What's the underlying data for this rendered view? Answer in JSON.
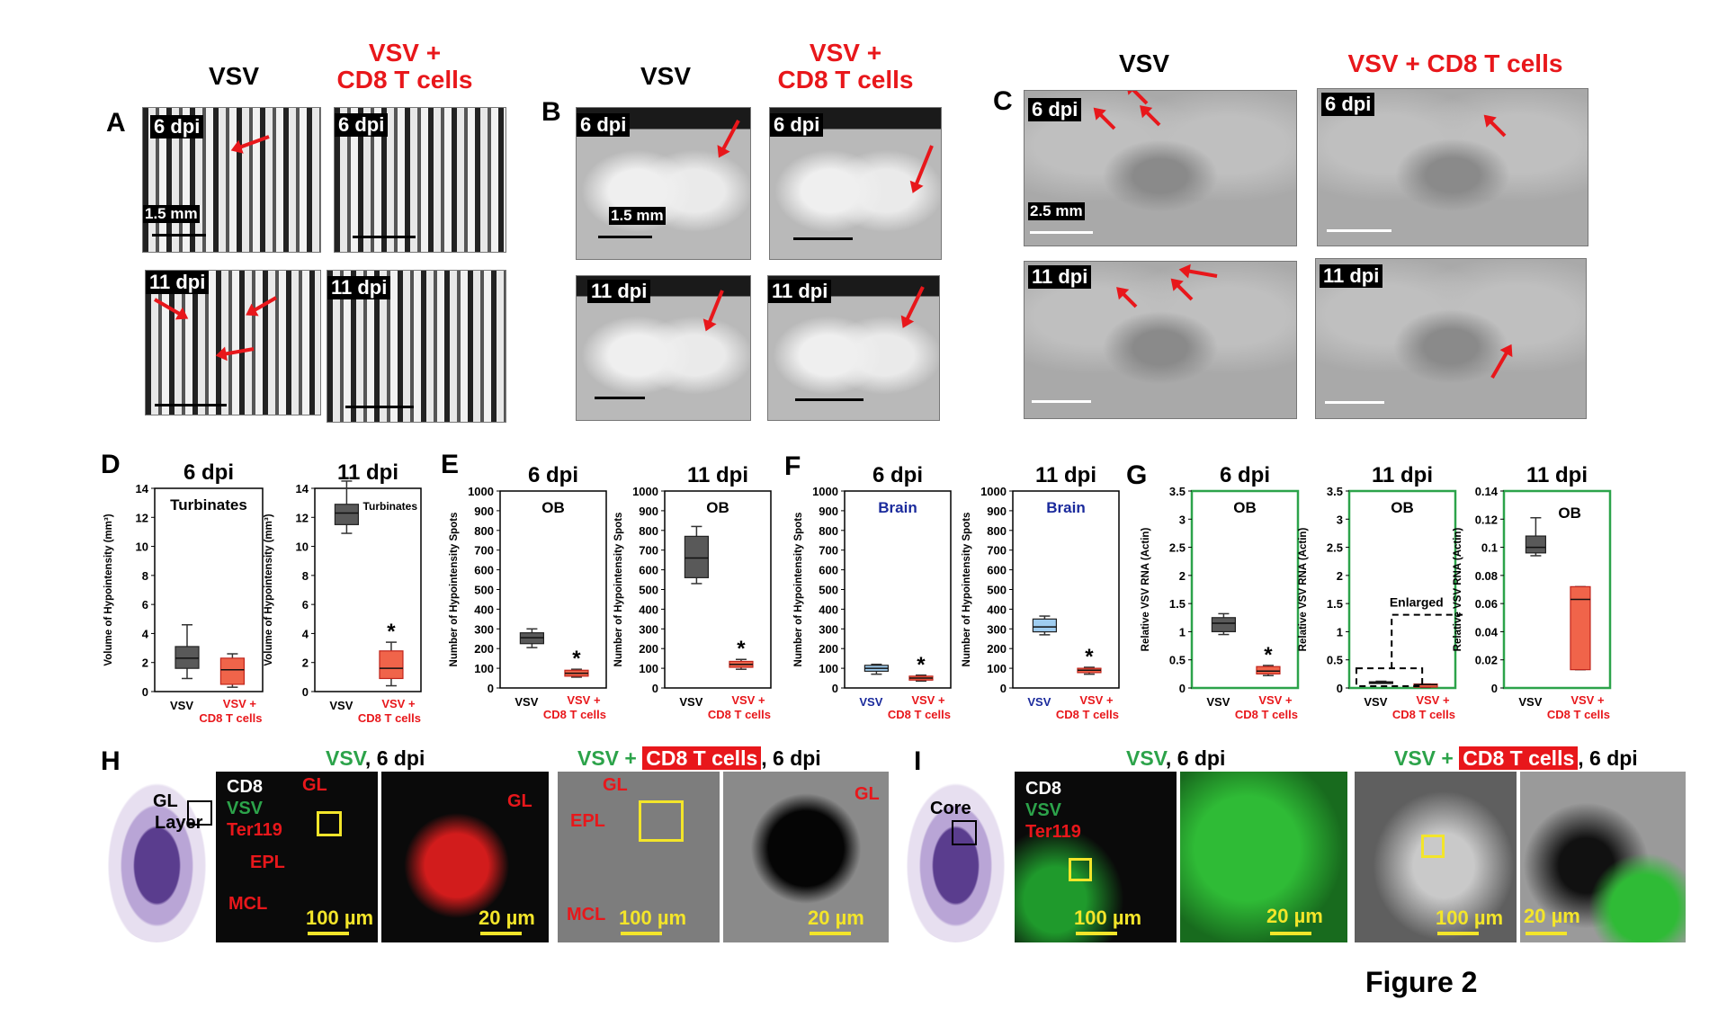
{
  "figure_label": "Figure 2",
  "colors": {
    "vsv_box": "#595959",
    "cd8_box": "#f0644a",
    "accent_red": "#e8171b",
    "green_border": "#2ca34a",
    "brain_blue": "#1a2a9c",
    "vsv_blue_box": "#9fcdf0",
    "yellow": "#f3e52a"
  },
  "panel_A": {
    "letter": "A",
    "col_vsv": "VSV",
    "col_cd8_line1": "VSV +",
    "col_cd8_line2": "CD8 T cells",
    "img_labels": [
      "6 dpi",
      "6 dpi",
      "11 dpi",
      "11 dpi"
    ],
    "scale": "1.5 mm"
  },
  "panel_B": {
    "letter": "B",
    "col_vsv": "VSV",
    "col_cd8_line1": "VSV +",
    "col_cd8_line2": "CD8 T cells",
    "img_labels": [
      "6 dpi",
      "6 dpi",
      "11 dpi",
      "11 dpi"
    ],
    "scale": "1.5 mm"
  },
  "panel_C": {
    "letter": "C",
    "col_vsv": "VSV",
    "col_cd8": "VSV +  CD8 T cells",
    "img_labels": [
      "6 dpi",
      "6 dpi",
      "11 dpi",
      "11 dpi"
    ],
    "scale": "2.5 mm"
  },
  "chart_data": [
    {
      "panel": "D",
      "type": "box",
      "title": "6 dpi",
      "inset": "Turbinates",
      "ylabel": "Volume of Hypointensity (mm³)",
      "ylim": [
        0,
        14
      ],
      "yticks": [
        0,
        2,
        4,
        6,
        8,
        10,
        12,
        14
      ],
      "categories": [
        "VSV",
        "VSV + CD8 T cells"
      ],
      "boxes": [
        {
          "min": 0.9,
          "q1": 1.6,
          "median": 2.3,
          "q3": 3.1,
          "max": 4.6
        },
        {
          "min": 0.3,
          "q1": 0.5,
          "median": 1.5,
          "q3": 2.3,
          "max": 2.6
        }
      ],
      "significance": []
    },
    {
      "panel": "D",
      "type": "box",
      "title": "11 dpi",
      "inset": "Turbinates",
      "ylabel": "Volume of Hypointensity (mm³)",
      "ylim": [
        0,
        14
      ],
      "yticks": [
        0,
        2,
        4,
        6,
        8,
        10,
        12,
        14
      ],
      "categories": [
        "VSV",
        "VSV + CD8 T cells"
      ],
      "boxes": [
        {
          "min": 10.9,
          "q1": 11.5,
          "median": 12.3,
          "q3": 12.9,
          "max": 14.5
        },
        {
          "min": 0.4,
          "q1": 0.9,
          "median": 1.6,
          "q3": 2.8,
          "max": 3.4
        }
      ],
      "significance": [
        "",
        "*"
      ]
    },
    {
      "panel": "E",
      "type": "box",
      "title": "6 dpi",
      "inset": "OB",
      "ylabel": "Number of Hypointensity Spots",
      "ylim": [
        0,
        1000
      ],
      "yticks": [
        0,
        100,
        200,
        300,
        400,
        500,
        600,
        700,
        800,
        900,
        1000
      ],
      "categories": [
        "VSV",
        "VSV + CD8 T cells"
      ],
      "boxes": [
        {
          "min": 205,
          "q1": 225,
          "median": 255,
          "q3": 280,
          "max": 300
        },
        {
          "min": 55,
          "q1": 60,
          "median": 75,
          "q3": 90,
          "max": 95
        }
      ],
      "significance": [
        "",
        "*"
      ]
    },
    {
      "panel": "E",
      "type": "box",
      "title": "11 dpi",
      "inset": "OB",
      "ylabel": "Number of Hypointensity Spots",
      "ylim": [
        0,
        1000
      ],
      "yticks": [
        0,
        100,
        200,
        300,
        400,
        500,
        600,
        700,
        800,
        900,
        1000
      ],
      "categories": [
        "VSV",
        "VSV + CD8 T cells"
      ],
      "boxes": [
        {
          "min": 530,
          "q1": 560,
          "median": 660,
          "q3": 770,
          "max": 820
        },
        {
          "min": 95,
          "q1": 105,
          "median": 120,
          "q3": 135,
          "max": 145
        }
      ],
      "significance": [
        "",
        "*"
      ]
    },
    {
      "panel": "F",
      "type": "box",
      "title": "6 dpi",
      "inset": "Brain",
      "ylabel": "Number of Hypointensity Spots",
      "ylim": [
        0,
        1000
      ],
      "yticks": [
        0,
        100,
        200,
        300,
        400,
        500,
        600,
        700,
        800,
        900,
        1000
      ],
      "categories": [
        "VSV",
        "VSV + CD8 T cells"
      ],
      "boxes": [
        {
          "min": 70,
          "q1": 85,
          "median": 100,
          "q3": 115,
          "max": 120
        },
        {
          "min": 35,
          "q1": 40,
          "median": 50,
          "q3": 60,
          "max": 65
        }
      ],
      "significance": [
        "",
        "*"
      ]
    },
    {
      "panel": "F",
      "type": "box",
      "title": "11 dpi",
      "inset": "Brain",
      "ylabel": "Number of Hypointensity Spots",
      "ylim": [
        0,
        1000
      ],
      "yticks": [
        0,
        100,
        200,
        300,
        400,
        500,
        600,
        700,
        800,
        900,
        1000
      ],
      "categories": [
        "VSV",
        "VSV + CD8 T cells"
      ],
      "boxes": [
        {
          "min": 270,
          "q1": 285,
          "median": 310,
          "q3": 350,
          "max": 365
        },
        {
          "min": 70,
          "q1": 78,
          "median": 90,
          "q3": 100,
          "max": 105
        }
      ],
      "significance": [
        "",
        "*"
      ]
    },
    {
      "panel": "G",
      "type": "box",
      "title": "6 dpi",
      "inset": "OB",
      "ylabel": "Relative VSV RNA (Actin)",
      "ylim": [
        0,
        3.5
      ],
      "yticks": [
        0,
        0.5,
        1,
        1.5,
        2,
        2.5,
        3,
        3.5
      ],
      "categories": [
        "VSV",
        "VSV + CD8 T cells"
      ],
      "boxes": [
        {
          "min": 0.95,
          "q1": 1.0,
          "median": 1.15,
          "q3": 1.25,
          "max": 1.32
        },
        {
          "min": 0.22,
          "q1": 0.25,
          "median": 0.3,
          "q3": 0.38,
          "max": 0.4
        }
      ],
      "significance": [
        "",
        "*"
      ]
    },
    {
      "panel": "G",
      "type": "box",
      "title": "11 dpi",
      "inset": "OB",
      "ylabel": "Relative VSV RNA (Actin)",
      "ylim": [
        0,
        3.5
      ],
      "yticks": [
        0,
        0.5,
        1,
        1.5,
        2,
        2.5,
        3,
        3.5
      ],
      "categories": [
        "VSV",
        "VSV + CD8 T cells"
      ],
      "boxes": [
        {
          "min": 0.09,
          "q1": 0.095,
          "median": 0.1,
          "q3": 0.11,
          "max": 0.12
        },
        {
          "min": 0.01,
          "q1": 0.015,
          "median": 0.06,
          "q3": 0.07,
          "max": 0.07
        }
      ],
      "significance": [],
      "annotation": "Enlarged"
    },
    {
      "panel": "G",
      "type": "box",
      "title": "11 dpi",
      "inset": "OB",
      "ylabel": "Relative VSV RNA (Actin)",
      "ylim": [
        0,
        0.14
      ],
      "yticks": [
        0,
        0.02,
        0.04,
        0.06,
        0.08,
        0.1,
        0.12,
        0.14
      ],
      "categories": [
        "VSV",
        "VSV + CD8 T cells"
      ],
      "boxes": [
        {
          "min": 0.094,
          "q1": 0.096,
          "median": 0.1,
          "q3": 0.108,
          "max": 0.121
        },
        {
          "min": 0.013,
          "q1": 0.013,
          "median": 0.063,
          "q3": 0.072,
          "max": 0.072
        }
      ],
      "significance": []
    }
  ],
  "chart_xlabels": {
    "vsv": "VSV",
    "cd8_line1": "VSV +",
    "cd8_line2": "CD8 T cells"
  },
  "panel_H": {
    "letter": "H",
    "gl_label": "GL",
    "layer_label": "Layer",
    "title_left_vsv": "VSV",
    "title_left_rest": ", 6 dpi",
    "title_right_vsv": "VSV +",
    "title_right_cd8": "CD8 T cells",
    "title_right_rest": ", 6 dpi",
    "legend": {
      "cd8": "CD8",
      "vsv": "VSV",
      "ter": "Ter119"
    },
    "regions": {
      "gl": "GL",
      "epl": "EPL",
      "mcl": "MCL"
    },
    "scale_100": "100 µm",
    "scale_20": "20 µm"
  },
  "panel_I": {
    "letter": "I",
    "core_label": "Core",
    "title_left_vsv": "VSV",
    "title_left_rest": ", 6 dpi",
    "title_right_vsv": "VSV +",
    "title_right_cd8": "CD8 T cells",
    "title_right_rest": ", 6 dpi",
    "legend": {
      "cd8": "CD8",
      "vsv": "VSV",
      "ter": "Ter119"
    },
    "scale_100": "100 µm",
    "scale_20": "20 µm"
  }
}
